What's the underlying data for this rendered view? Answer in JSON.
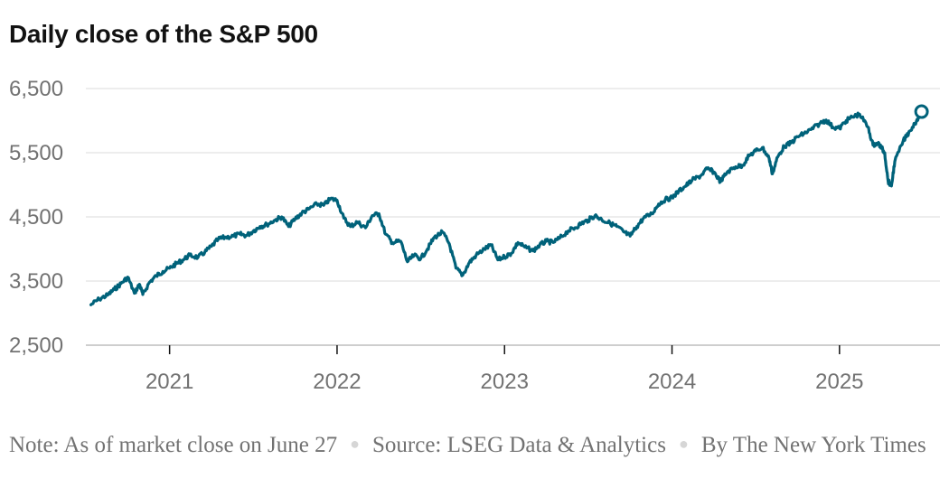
{
  "chart_data": {
    "type": "line",
    "title": "Daily close of the S&P 500",
    "xlabel": "",
    "ylabel": "",
    "ylim": [
      2500,
      6500
    ],
    "yticks": [
      2500,
      3500,
      4500,
      5500,
      6500
    ],
    "ytick_labels": [
      "2,500",
      "3,500",
      "4,500",
      "5,500",
      "6,500"
    ],
    "xlim": [
      2020.5,
      2025.6
    ],
    "xticks": [
      2021,
      2022,
      2023,
      2024,
      2025
    ],
    "xtick_labels": [
      "2021",
      "2022",
      "2023",
      "2024",
      "2025"
    ],
    "grid": true,
    "line_color": "#00627a",
    "end_marker": "circle",
    "series": [
      {
        "name": "S&P 500",
        "x": [
          2020.53,
          2020.58,
          2020.63,
          2020.67,
          2020.71,
          2020.75,
          2020.79,
          2020.82,
          2020.84,
          2020.88,
          2020.92,
          2020.96,
          2021.0,
          2021.04,
          2021.08,
          2021.12,
          2021.17,
          2021.21,
          2021.25,
          2021.29,
          2021.33,
          2021.38,
          2021.42,
          2021.46,
          2021.5,
          2021.54,
          2021.58,
          2021.63,
          2021.67,
          2021.71,
          2021.75,
          2021.79,
          2021.83,
          2021.88,
          2021.92,
          2021.96,
          2022.0,
          2022.04,
          2022.08,
          2022.12,
          2022.17,
          2022.21,
          2022.25,
          2022.29,
          2022.33,
          2022.38,
          2022.42,
          2022.46,
          2022.5,
          2022.54,
          2022.58,
          2022.63,
          2022.67,
          2022.71,
          2022.75,
          2022.79,
          2022.83,
          2022.88,
          2022.92,
          2022.96,
          2023.0,
          2023.04,
          2023.08,
          2023.12,
          2023.17,
          2023.21,
          2023.25,
          2023.29,
          2023.33,
          2023.38,
          2023.42,
          2023.46,
          2023.5,
          2023.54,
          2023.58,
          2023.63,
          2023.67,
          2023.71,
          2023.75,
          2023.79,
          2023.83,
          2023.88,
          2023.92,
          2023.96,
          2024.0,
          2024.04,
          2024.08,
          2024.12,
          2024.17,
          2024.21,
          2024.25,
          2024.29,
          2024.33,
          2024.38,
          2024.42,
          2024.46,
          2024.5,
          2024.54,
          2024.58,
          2024.6,
          2024.63,
          2024.67,
          2024.71,
          2024.75,
          2024.79,
          2024.83,
          2024.88,
          2024.92,
          2024.96,
          2025.0,
          2025.04,
          2025.08,
          2025.12,
          2025.17,
          2025.2,
          2025.23,
          2025.25,
          2025.27,
          2025.29,
          2025.31,
          2025.33,
          2025.38,
          2025.42,
          2025.46,
          2025.49
        ],
        "values": [
          3130,
          3220,
          3280,
          3370,
          3460,
          3560,
          3310,
          3450,
          3290,
          3480,
          3580,
          3650,
          3700,
          3770,
          3830,
          3900,
          3870,
          3950,
          4040,
          4150,
          4180,
          4200,
          4230,
          4210,
          4280,
          4350,
          4380,
          4450,
          4500,
          4350,
          4470,
          4560,
          4620,
          4700,
          4680,
          4780,
          4760,
          4480,
          4350,
          4420,
          4330,
          4520,
          4550,
          4230,
          4100,
          4120,
          3800,
          3900,
          3850,
          4000,
          4180,
          4260,
          4080,
          3700,
          3590,
          3790,
          3900,
          4000,
          4060,
          3830,
          3880,
          3930,
          4100,
          4030,
          3970,
          4060,
          4120,
          4100,
          4170,
          4280,
          4330,
          4400,
          4450,
          4520,
          4460,
          4400,
          4350,
          4270,
          4200,
          4350,
          4480,
          4550,
          4700,
          4770,
          4800,
          4900,
          4980,
          5070,
          5140,
          5250,
          5200,
          5050,
          5200,
          5280,
          5300,
          5450,
          5530,
          5580,
          5410,
          5170,
          5430,
          5600,
          5650,
          5750,
          5800,
          5860,
          5950,
          6010,
          5900,
          5880,
          6000,
          6060,
          6100,
          5900,
          5620,
          5650,
          5580,
          5500,
          5060,
          4980,
          5360,
          5680,
          5840,
          6000,
          6140
        ]
      }
    ]
  },
  "notes": {
    "note": "Note: As of market close on June 27",
    "source": "Source: LSEG Data & Analytics",
    "credit": "By The New York Times"
  }
}
